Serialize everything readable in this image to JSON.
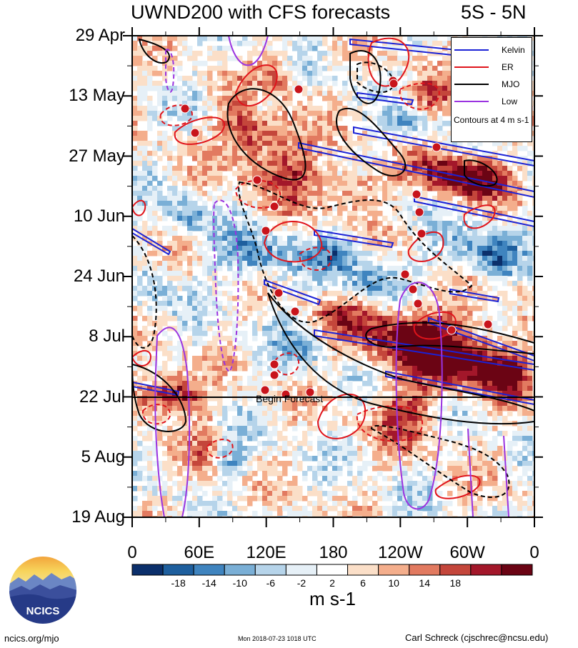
{
  "header": {
    "title": "UWND200 with CFS forecasts",
    "region": "5S - 5N"
  },
  "chart_data": {
    "type": "heatmap",
    "title": "UWND200 with CFS forecasts",
    "subtitle": "5S - 5N",
    "y_ticks": [
      "29 Apr",
      "13 May",
      "27 May",
      "10 Jun",
      "24 Jun",
      "8 Jul",
      "22 Jul",
      "5 Aug",
      "19 Aug"
    ],
    "x_ticks": [
      "0",
      "60E",
      "120E",
      "180",
      "120W",
      "60W",
      "0"
    ],
    "xlim": [
      0,
      360
    ],
    "forecast_start": "22 Jul",
    "forecast_label": "Begin Forecast",
    "colorbar": {
      "levels": [
        "-18",
        "-14",
        "-10",
        "-6",
        "-2",
        "2",
        "6",
        "10",
        "14",
        "18"
      ],
      "colors": [
        "#0b2f6b",
        "#1e5f9e",
        "#3f84bf",
        "#7aafd6",
        "#b6d4ea",
        "#e6f0f7",
        "#ffffff",
        "#fbdfc8",
        "#f4ae8c",
        "#e27a60",
        "#c4463b",
        "#a3172a",
        "#6b0414"
      ],
      "units": "m s-1"
    },
    "legend": {
      "placement": "top-right",
      "entries": [
        {
          "name": "Kelvin",
          "color": "#1b22d6"
        },
        {
          "name": "ER",
          "color": "#e0141b"
        },
        {
          "name": "MJO",
          "color": "#000000"
        },
        {
          "name": "Low",
          "color": "#9a33e0"
        }
      ],
      "note": "Contours at 4 m s-1"
    }
  },
  "logo": {
    "text": "NCICS"
  },
  "footer": {
    "left": "ncics.org/mjo",
    "timestamp": "Mon 2018-07-23 1018 UTC",
    "author": "Carl Schreck (cjschrec@ncsu.edu)"
  }
}
